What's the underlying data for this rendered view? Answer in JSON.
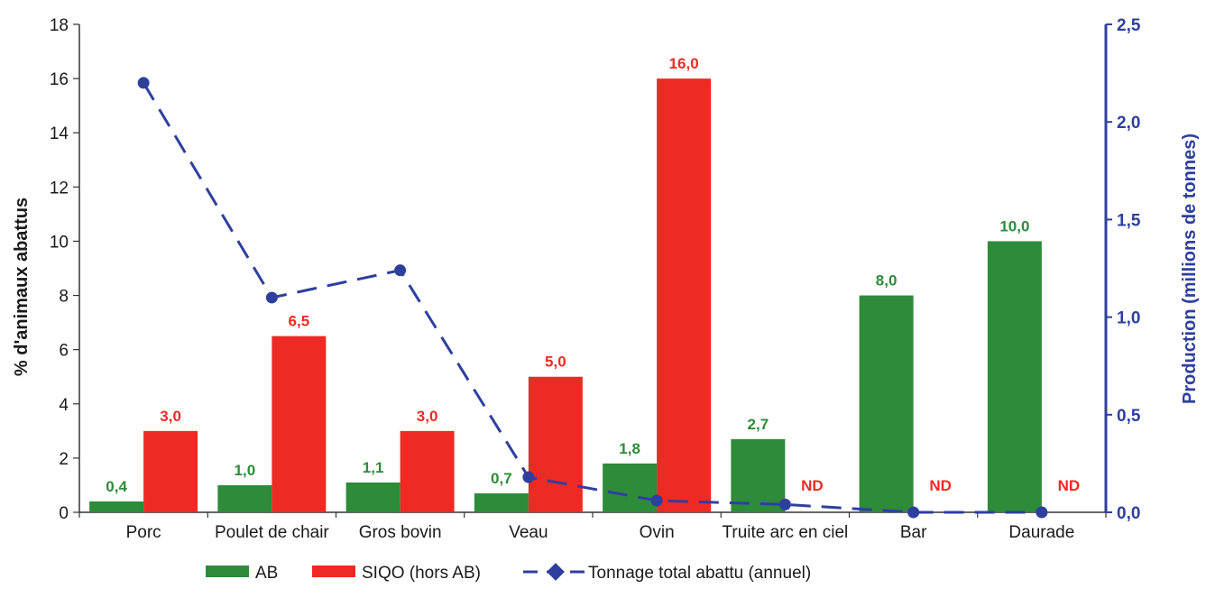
{
  "chart_data": {
    "type": "bar",
    "categories": [
      "Porc",
      "Poulet de chair",
      "Gros bovin",
      "Veau",
      "Ovin",
      "Truite arc en ciel",
      "Bar",
      "Daurade"
    ],
    "series": [
      {
        "name": "AB",
        "axis": "left",
        "color": "#2e8b3a",
        "values": [
          0.4,
          1.0,
          1.1,
          0.7,
          1.8,
          2.7,
          8.0,
          10.0
        ],
        "labels": [
          "0,4",
          "1,0",
          "1,1",
          "0,7",
          "1,8",
          "2,7",
          "8,0",
          "10,0"
        ]
      },
      {
        "name": "SIQO (hors AB)",
        "axis": "left",
        "color": "#ee2a24",
        "values": [
          3.0,
          6.5,
          3.0,
          5.0,
          16.0,
          null,
          null,
          null
        ],
        "labels": [
          "3,0",
          "6,5",
          "3,0",
          "5,0",
          "16,0",
          "ND",
          "ND",
          "ND"
        ]
      },
      {
        "name": "Tonnage total abattu (annuel)",
        "type": "line",
        "axis": "right",
        "color": "#2e3f9e",
        "values": [
          2.2,
          1.1,
          1.24,
          0.18,
          0.06,
          0.04,
          0.0,
          0.0
        ]
      }
    ],
    "ylabel": "% d'animaux abattus",
    "ylabel_right": "Production (millions de tonnes)",
    "ylim": [
      0,
      18
    ],
    "yticks": [
      0,
      2,
      4,
      6,
      8,
      10,
      12,
      14,
      16,
      18
    ],
    "ylim_right": [
      0,
      2.5
    ],
    "yticks_right": [
      "0,0",
      "0,5",
      "1,0",
      "1,5",
      "2,0",
      "2,5"
    ],
    "grid": false,
    "legend_position": "bottom"
  }
}
